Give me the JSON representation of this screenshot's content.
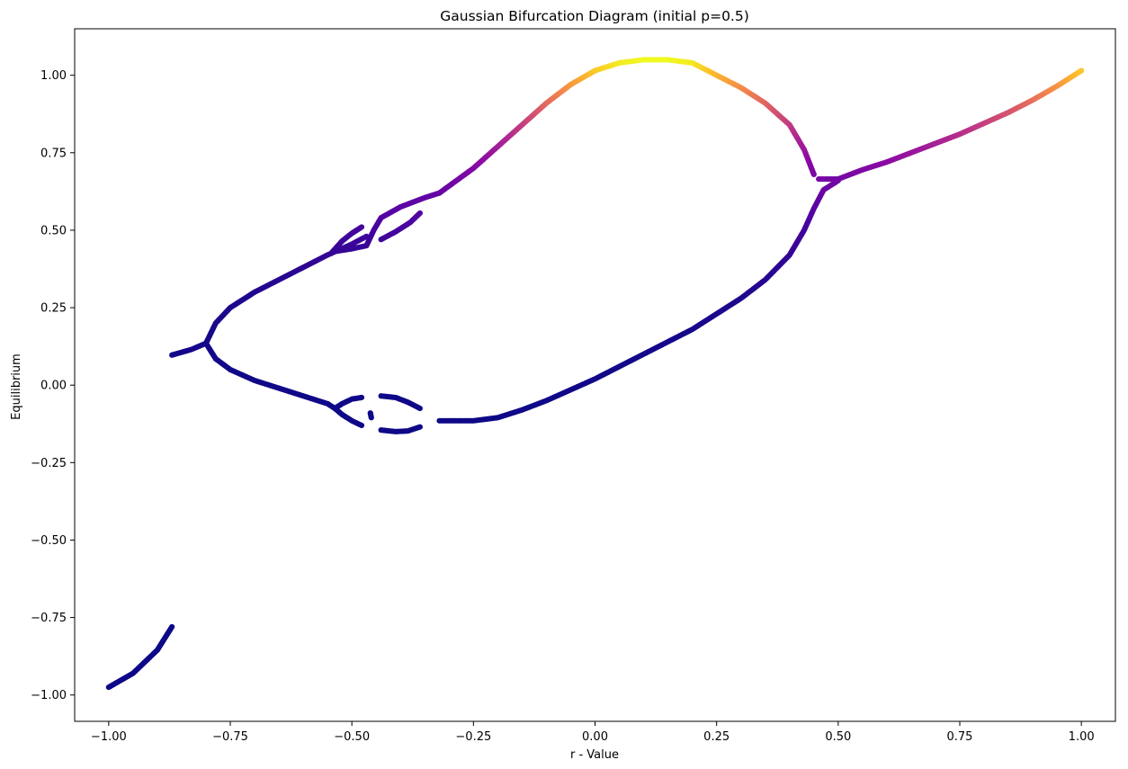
{
  "chart_data": {
    "type": "scatter",
    "title": "Gaussian Bifurcation Diagram (initial p=0.5)",
    "xlabel": "r - Value",
    "ylabel": "Equilibrium",
    "xlim": [
      -1.07,
      1.07
    ],
    "ylim": [
      -1.085,
      1.15
    ],
    "xticks": [
      -1.0,
      -0.75,
      -0.5,
      -0.25,
      0.0,
      0.25,
      0.5,
      0.75,
      1.0
    ],
    "xtick_labels": [
      "−1.00",
      "−0.75",
      "−0.50",
      "−0.25",
      "0.00",
      "0.25",
      "0.50",
      "0.75",
      "1.00"
    ],
    "yticks": [
      -1.0,
      -0.75,
      -0.5,
      -0.25,
      0.0,
      0.25,
      0.5,
      0.75,
      1.0
    ],
    "ytick_labels": [
      "−1.00",
      "−0.75",
      "−0.50",
      "−0.25",
      "0.00",
      "0.25",
      "0.50",
      "0.75",
      "1.00"
    ],
    "grid": false,
    "legend": "none",
    "colormap": "plasma",
    "color_by": "y",
    "series": [
      {
        "points": [
          [
            -1.0,
            -0.975
          ],
          [
            -0.95,
            -0.93
          ],
          [
            -0.9,
            -0.855
          ],
          [
            -0.87,
            -0.78
          ]
        ]
      },
      {
        "points": [
          [
            -0.87,
            0.097
          ],
          [
            -0.83,
            0.115
          ],
          [
            -0.8,
            0.135
          ]
        ]
      },
      {
        "points": [
          [
            -0.8,
            0.135
          ],
          [
            -0.78,
            0.2
          ],
          [
            -0.75,
            0.25
          ],
          [
            -0.7,
            0.3
          ],
          [
            -0.65,
            0.34
          ],
          [
            -0.6,
            0.38
          ],
          [
            -0.55,
            0.42
          ],
          [
            -0.5,
            0.455
          ],
          [
            -0.47,
            0.48
          ]
        ]
      },
      {
        "points": [
          [
            -0.8,
            0.135
          ],
          [
            -0.78,
            0.085
          ],
          [
            -0.75,
            0.05
          ],
          [
            -0.7,
            0.015
          ],
          [
            -0.65,
            -0.01
          ],
          [
            -0.6,
            -0.035
          ],
          [
            -0.55,
            -0.06
          ],
          [
            -0.535,
            -0.075
          ]
        ]
      },
      {
        "points": [
          [
            -0.54,
            0.43
          ],
          [
            -0.52,
            0.465
          ],
          [
            -0.5,
            0.49
          ],
          [
            -0.48,
            0.51
          ]
        ]
      },
      {
        "points": [
          [
            -0.54,
            0.43
          ],
          [
            -0.52,
            0.435
          ],
          [
            -0.5,
            0.44
          ],
          [
            -0.47,
            0.45
          ],
          [
            -0.455,
            0.5
          ],
          [
            -0.44,
            0.54
          ],
          [
            -0.4,
            0.575
          ],
          [
            -0.35,
            0.605
          ],
          [
            -0.32,
            0.62
          ]
        ]
      },
      {
        "points": [
          [
            -0.44,
            0.47
          ],
          [
            -0.41,
            0.495
          ],
          [
            -0.38,
            0.525
          ],
          [
            -0.36,
            0.555
          ]
        ]
      },
      {
        "points": [
          [
            -0.535,
            -0.075
          ],
          [
            -0.52,
            -0.06
          ],
          [
            -0.5,
            -0.045
          ],
          [
            -0.48,
            -0.04
          ]
        ]
      },
      {
        "points": [
          [
            -0.535,
            -0.075
          ],
          [
            -0.52,
            -0.095
          ],
          [
            -0.5,
            -0.115
          ],
          [
            -0.48,
            -0.13
          ]
        ]
      },
      {
        "points": [
          [
            -0.462,
            -0.09
          ],
          [
            -0.46,
            -0.105
          ]
        ]
      },
      {
        "points": [
          [
            -0.44,
            -0.035
          ],
          [
            -0.41,
            -0.04
          ],
          [
            -0.385,
            -0.055
          ],
          [
            -0.36,
            -0.075
          ]
        ]
      },
      {
        "points": [
          [
            -0.44,
            -0.145
          ],
          [
            -0.41,
            -0.15
          ],
          [
            -0.385,
            -0.148
          ],
          [
            -0.36,
            -0.135
          ]
        ]
      },
      {
        "points": [
          [
            -0.32,
            0.62
          ],
          [
            -0.25,
            0.7
          ],
          [
            -0.2,
            0.77
          ],
          [
            -0.15,
            0.84
          ],
          [
            -0.1,
            0.91
          ],
          [
            -0.05,
            0.97
          ],
          [
            0.0,
            1.015
          ],
          [
            0.05,
            1.04
          ],
          [
            0.1,
            1.05
          ],
          [
            0.15,
            1.05
          ],
          [
            0.2,
            1.04
          ],
          [
            0.25,
            1.0
          ],
          [
            0.3,
            0.96
          ],
          [
            0.35,
            0.91
          ],
          [
            0.4,
            0.84
          ],
          [
            0.43,
            0.76
          ],
          [
            0.45,
            0.68
          ]
        ]
      },
      {
        "points": [
          [
            -0.32,
            -0.115
          ],
          [
            -0.25,
            -0.115
          ],
          [
            -0.2,
            -0.105
          ],
          [
            -0.15,
            -0.08
          ],
          [
            -0.1,
            -0.05
          ],
          [
            -0.05,
            -0.015
          ],
          [
            0.0,
            0.02
          ],
          [
            0.05,
            0.06
          ],
          [
            0.1,
            0.1
          ],
          [
            0.15,
            0.14
          ],
          [
            0.2,
            0.18
          ],
          [
            0.25,
            0.23
          ],
          [
            0.3,
            0.28
          ],
          [
            0.35,
            0.34
          ],
          [
            0.4,
            0.42
          ],
          [
            0.43,
            0.5
          ],
          [
            0.45,
            0.57
          ],
          [
            0.47,
            0.63
          ],
          [
            0.5,
            0.66
          ]
        ]
      },
      {
        "points": [
          [
            0.46,
            0.665
          ],
          [
            0.5,
            0.665
          ],
          [
            0.55,
            0.695
          ],
          [
            0.6,
            0.72
          ],
          [
            0.65,
            0.75
          ],
          [
            0.7,
            0.78
          ],
          [
            0.75,
            0.81
          ],
          [
            0.8,
            0.845
          ],
          [
            0.85,
            0.88
          ],
          [
            0.9,
            0.92
          ],
          [
            0.95,
            0.965
          ],
          [
            1.0,
            1.015
          ]
        ]
      }
    ]
  }
}
